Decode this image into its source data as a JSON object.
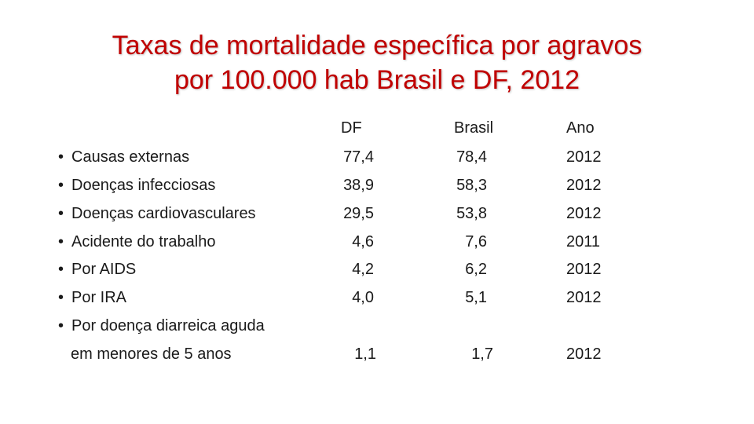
{
  "title": {
    "line1": "Taxas de mortalidade específica por agravos",
    "line2": "por 100.000 hab Brasil e DF, 2012"
  },
  "headers": {
    "df": "DF",
    "brasil": "Brasil",
    "ano": "Ano"
  },
  "rows": [
    {
      "label": "Causas externas",
      "df": "77,4",
      "brasil": "78,4",
      "ano": "2012"
    },
    {
      "label": "Doenças infecciosas",
      "df": "38,9",
      "brasil": "58,3",
      "ano": "2012"
    },
    {
      "label": "Doenças cardiovasculares",
      "df": "29,5",
      "brasil": "53,8",
      "ano": "2012"
    },
    {
      "label": "Acidente do trabalho",
      "df": "4,6",
      "brasil": "7,6",
      "ano": "2011"
    },
    {
      "label": "Por AIDS",
      "df": "4,2",
      "brasil": "6,2",
      "ano": "2012"
    },
    {
      "label": "Por IRA",
      "df": "4,0",
      "brasil": "5,1",
      "ano": "2012"
    },
    {
      "label": "Por doença diarreica aguda",
      "label_cont": "em menores de 5 anos",
      "df": "1,1",
      "brasil": "1,7",
      "ano": "2012"
    }
  ]
}
